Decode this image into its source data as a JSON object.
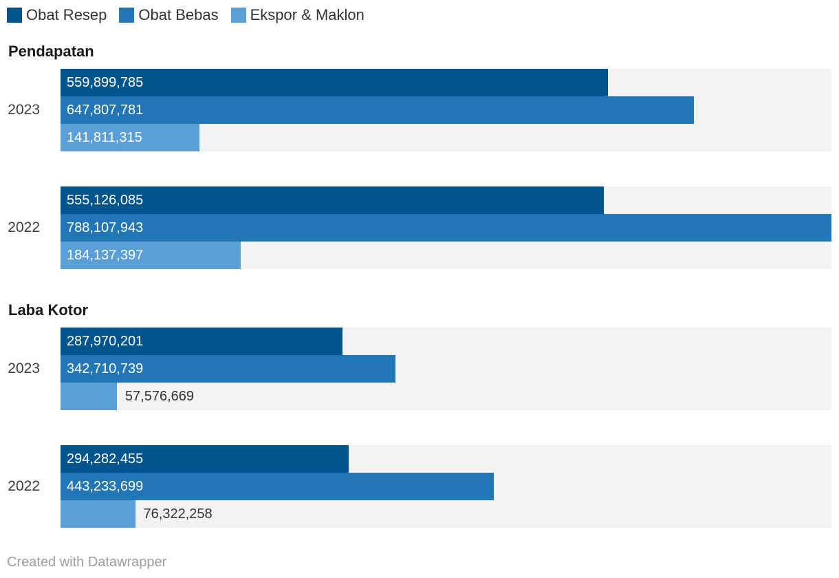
{
  "legend": {
    "items": [
      {
        "label": "Obat Resep",
        "color": "#00558f"
      },
      {
        "label": "Obat Bebas",
        "color": "#2176b5"
      },
      {
        "label": "Ekspor & Maklon",
        "color": "#5b9fd9"
      }
    ]
  },
  "footer": {
    "credit": "Created with Datawrapper"
  },
  "colors": {
    "track": "#f2f2f2",
    "label_inside": "#ffffff",
    "label_outside": "#333333"
  },
  "chart_data": {
    "type": "bar",
    "orientation": "horizontal",
    "max_value": 788107943,
    "value_axis_hidden": true,
    "series": [
      "Obat Resep",
      "Obat Bebas",
      "Ekspor & Maklon"
    ],
    "series_colors": [
      "#00558f",
      "#2176b5",
      "#5b9fd9"
    ],
    "sections": [
      {
        "title": "Pendapatan",
        "groups": [
          {
            "category": "2023",
            "values": [
              559899785,
              647807781,
              141811315
            ],
            "labels": [
              "559,899,785",
              "647,807,781",
              "141,811,315"
            ]
          },
          {
            "category": "2022",
            "values": [
              555126085,
              788107943,
              184137397
            ],
            "labels": [
              "555,126,085",
              "788,107,943",
              "184,137,397"
            ]
          }
        ]
      },
      {
        "title": "Laba Kotor",
        "groups": [
          {
            "category": "2023",
            "values": [
              287970201,
              342710739,
              57576669
            ],
            "labels": [
              "287,970,201",
              "342,710,739",
              "57,576,669"
            ]
          },
          {
            "category": "2022",
            "values": [
              294282455,
              443233699,
              76322258
            ],
            "labels": [
              "294,282,455",
              "443,233,699",
              "76,322,258"
            ]
          }
        ]
      }
    ]
  }
}
